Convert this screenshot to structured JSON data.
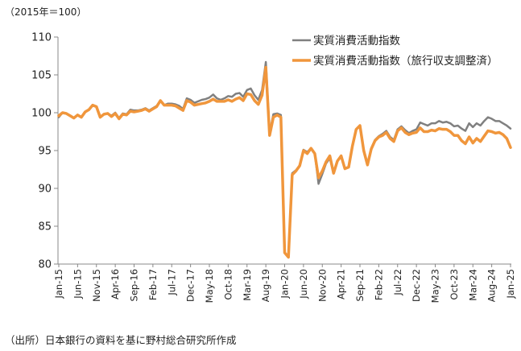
{
  "unit_label": "（2015年＝100）",
  "source_note": "（出所）日本銀行の資料を基に野村総合研究所作成",
  "chart_data": {
    "type": "line",
    "title": "",
    "xlabel": "",
    "ylabel": "",
    "ylim": [
      80,
      110
    ],
    "yticks": [
      80,
      85,
      90,
      95,
      100,
      105,
      110
    ],
    "grid": false,
    "legend_position": "top-right",
    "x_start": "Jan-15",
    "x_end": "Jan-25",
    "frequency": "monthly",
    "xtick_labels": [
      "Jan-15",
      "Jun-15",
      "Nov-15",
      "Apr-16",
      "Sep-16",
      "Feb-17",
      "Jul-17",
      "Dec-17",
      "May-18",
      "Oct-18",
      "Mar-19",
      "Aug-19",
      "Jan-20",
      "Jun-20",
      "Nov-20",
      "Apr-21",
      "Sep-21",
      "Feb-22",
      "Jul-22",
      "Dec-22",
      "May-23",
      "Oct-23",
      "Mar-24",
      "Aug-24",
      "Jan-25"
    ],
    "series": [
      {
        "name": "実質消費活動指数",
        "color": "#808080",
        "values": [
          99.4,
          100.0,
          99.9,
          99.6,
          99.3,
          99.7,
          99.4,
          100.1,
          100.4,
          101.0,
          100.8,
          99.5,
          99.8,
          99.9,
          99.6,
          100.0,
          99.3,
          99.9,
          99.8,
          100.4,
          100.3,
          100.3,
          100.4,
          100.6,
          100.3,
          100.6,
          100.9,
          101.6,
          101.0,
          101.2,
          101.2,
          101.1,
          100.9,
          100.5,
          101.9,
          101.7,
          101.3,
          101.5,
          101.7,
          101.8,
          102.0,
          102.4,
          101.9,
          101.7,
          101.9,
          102.2,
          102.1,
          102.5,
          102.6,
          102.1,
          103.0,
          103.2,
          102.3,
          101.7,
          103.0,
          106.7,
          97.3,
          99.8,
          99.9,
          99.7,
          81.5,
          81.0,
          92.0,
          92.4,
          93.0,
          95.1,
          94.8,
          95.3,
          94.6,
          90.6,
          91.9,
          93.3,
          94.0,
          92.0,
          93.6,
          94.3,
          92.6,
          92.8,
          95.6,
          97.8,
          98.3,
          95.0,
          93.1,
          95.3,
          96.4,
          96.9,
          97.2,
          97.6,
          96.8,
          96.4,
          97.8,
          98.2,
          97.7,
          97.3,
          97.6,
          97.8,
          98.7,
          98.5,
          98.3,
          98.6,
          98.6,
          98.9,
          98.7,
          98.8,
          98.6,
          98.2,
          98.3,
          97.9,
          97.6,
          98.6,
          98.1,
          98.6,
          98.3,
          98.9,
          99.4,
          99.2,
          98.9,
          98.9,
          98.6,
          98.3,
          97.9
        ]
      },
      {
        "name": "実質消費活動指数（旅行収支調整済）",
        "color": "#f0963c",
        "values": [
          99.6,
          100.0,
          99.9,
          99.6,
          99.3,
          99.7,
          99.4,
          100.1,
          100.4,
          101.0,
          100.8,
          99.4,
          99.8,
          99.9,
          99.5,
          99.9,
          99.2,
          99.8,
          99.7,
          100.2,
          100.1,
          100.2,
          100.3,
          100.5,
          100.2,
          100.5,
          100.8,
          101.6,
          101.0,
          101.0,
          101.0,
          100.9,
          100.6,
          100.3,
          101.6,
          101.4,
          101.0,
          101.1,
          101.2,
          101.3,
          101.5,
          101.8,
          101.5,
          101.5,
          101.5,
          101.7,
          101.5,
          101.8,
          102.0,
          101.6,
          102.5,
          102.4,
          101.6,
          101.1,
          102.3,
          106.0,
          97.0,
          99.4,
          99.7,
          99.4,
          81.5,
          80.9,
          91.8,
          92.3,
          93.0,
          95.0,
          94.6,
          95.3,
          94.6,
          91.4,
          92.3,
          93.5,
          94.3,
          92.0,
          93.6,
          94.3,
          92.6,
          92.8,
          95.6,
          97.8,
          98.3,
          95.0,
          93.1,
          95.2,
          96.3,
          96.8,
          97.0,
          97.4,
          96.6,
          96.2,
          97.6,
          98.0,
          97.4,
          97.1,
          97.3,
          97.4,
          98.0,
          97.5,
          97.5,
          97.7,
          97.6,
          97.9,
          97.8,
          97.8,
          97.5,
          97.0,
          97.0,
          96.3,
          95.9,
          96.8,
          96.0,
          96.6,
          96.2,
          96.9,
          97.6,
          97.5,
          97.3,
          97.4,
          97.1,
          96.6,
          95.4
        ]
      }
    ]
  }
}
